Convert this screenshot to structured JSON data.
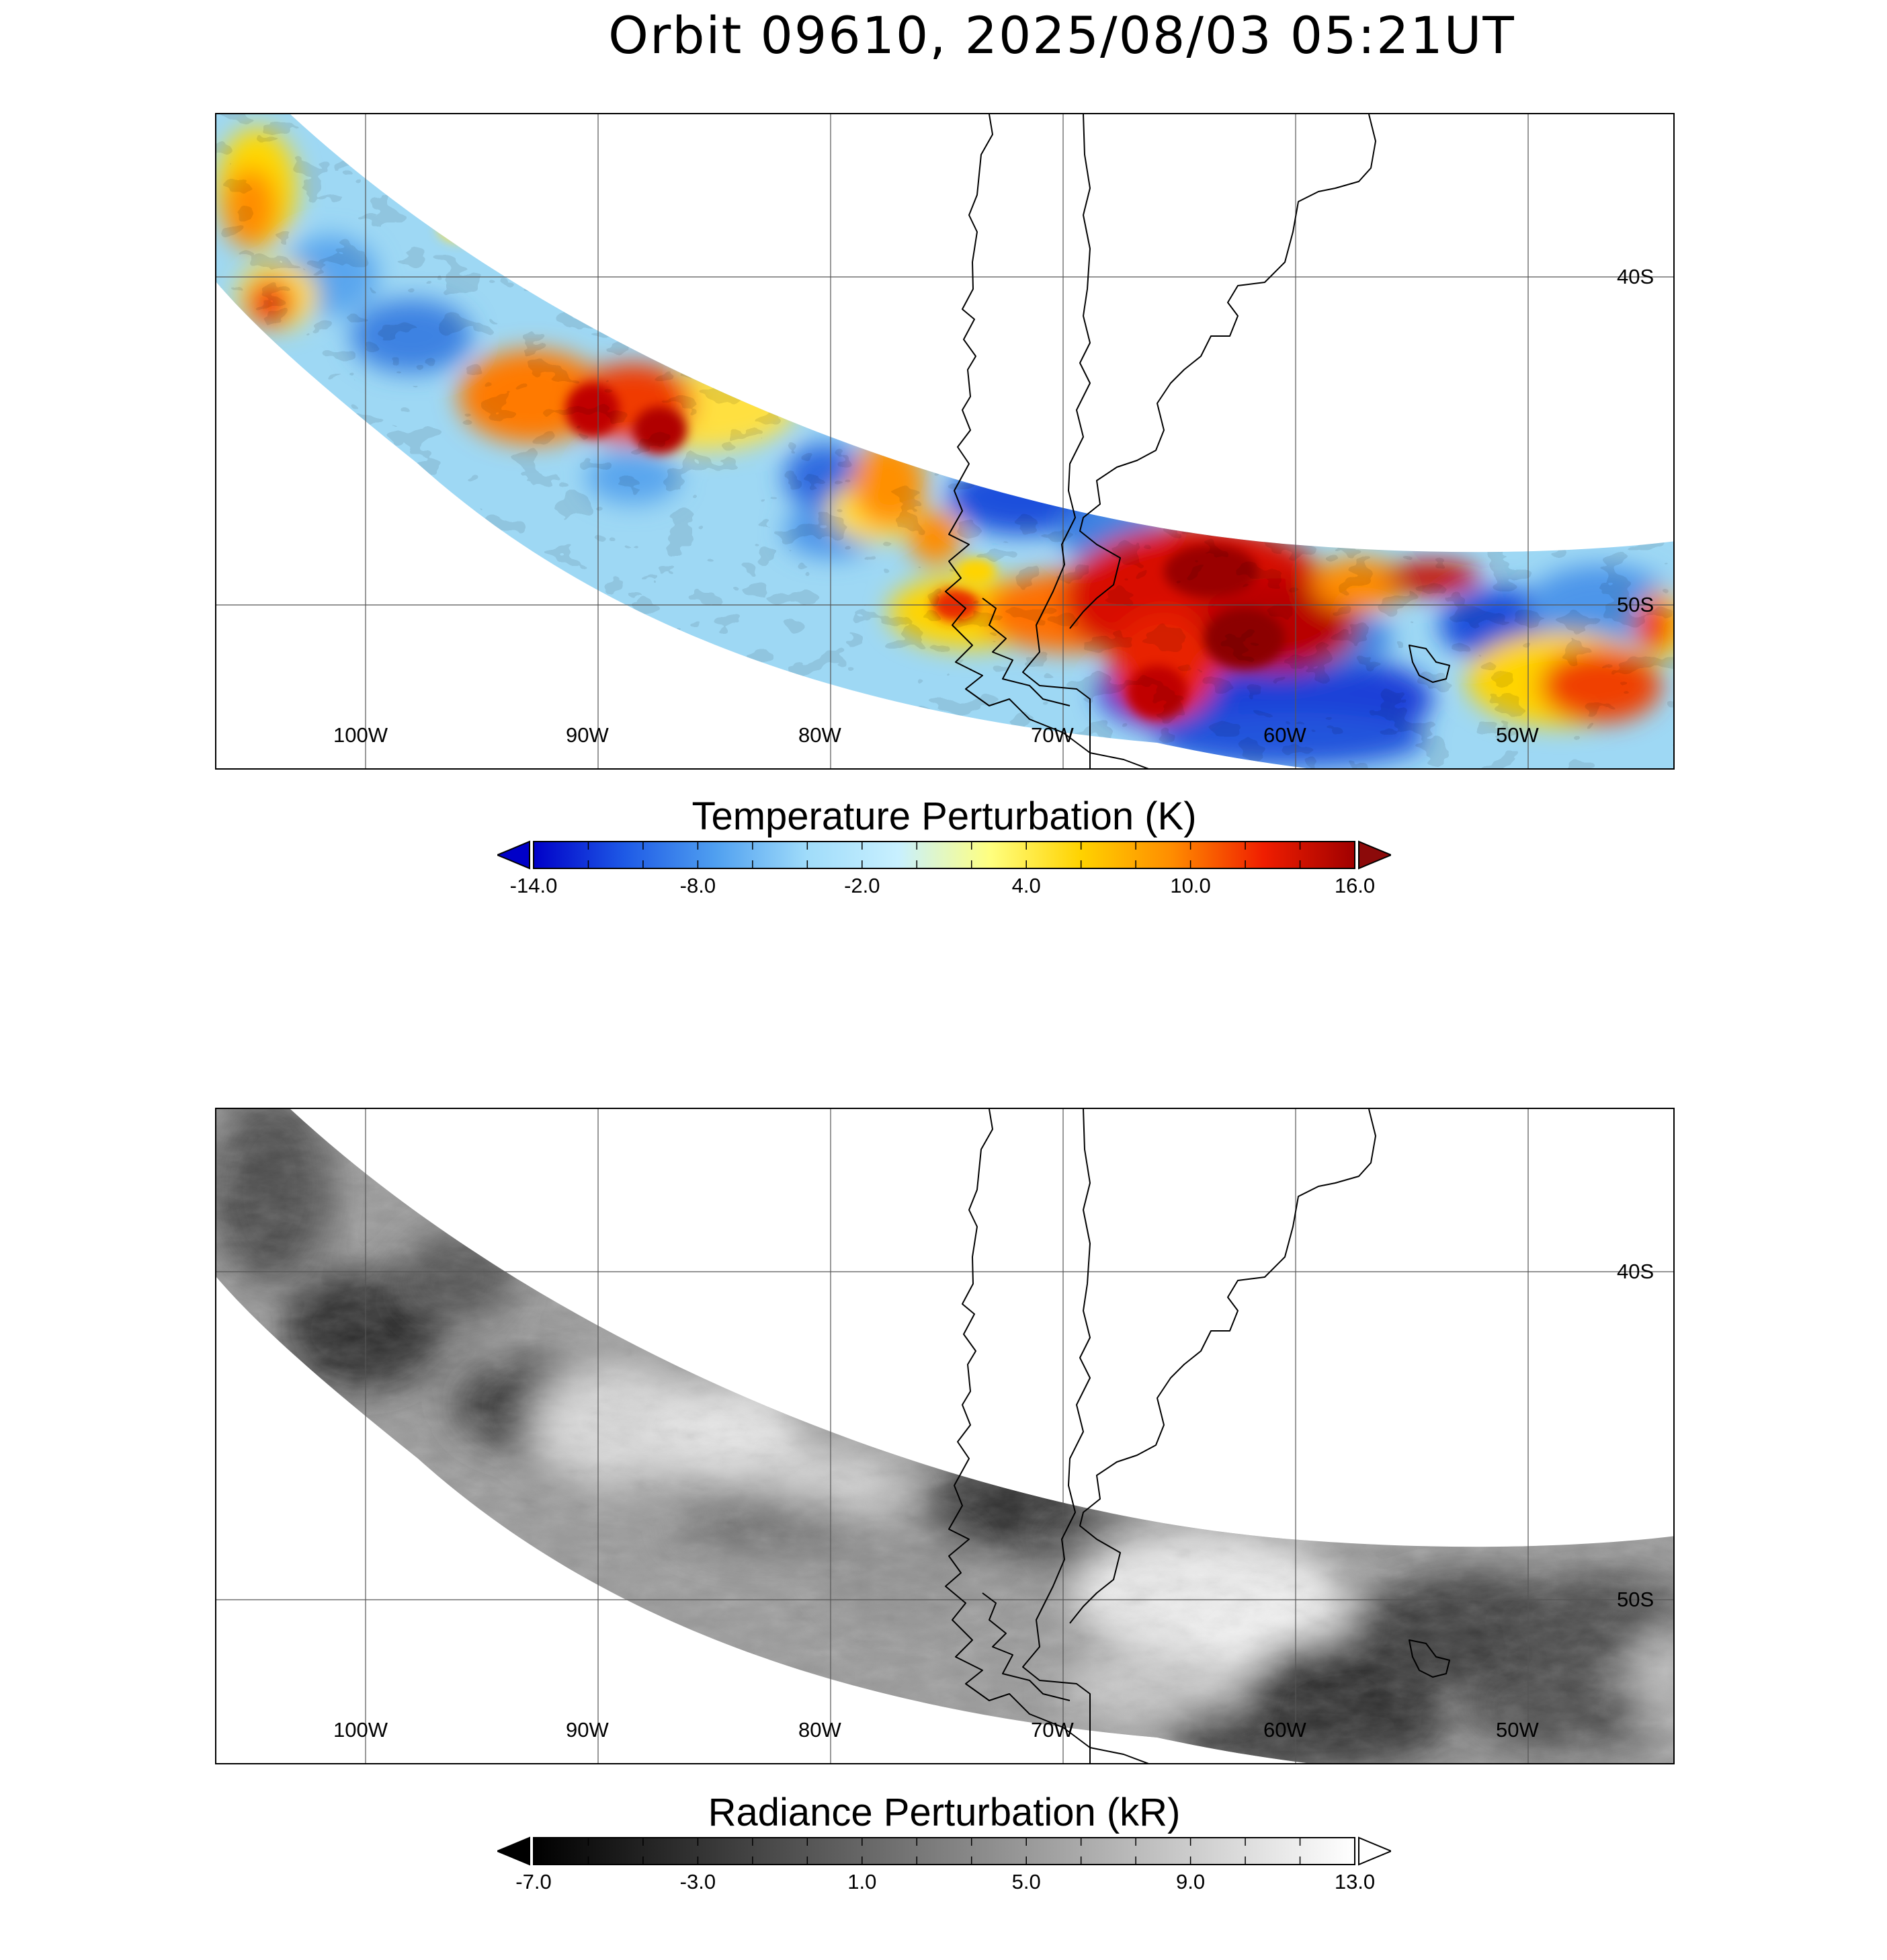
{
  "title": "Orbit 09610, 2025/08/03 05:21UT",
  "grid": {
    "lon_labels": [
      "100W",
      "90W",
      "80W",
      "70W",
      "60W",
      "50W"
    ],
    "lat_labels": [
      "40S",
      "50S"
    ]
  },
  "panels": [
    {
      "name": "temperature",
      "colorbar": {
        "title": "Temperature Perturbation (K)",
        "ticks": [
          "-14.0",
          "-8.0",
          "-2.0",
          "4.0",
          "10.0",
          "16.0"
        ],
        "range": [
          -14.0,
          16.0
        ],
        "colors": [
          "#0000c8",
          "#1e5ae6",
          "#50a0f0",
          "#a0dcfa",
          "#c8f0ff",
          "#ffff80",
          "#ffd200",
          "#ff8c00",
          "#f01e00",
          "#a00000"
        ],
        "under_color": "#0000c8",
        "over_color": "#8c0a0a"
      }
    },
    {
      "name": "radiance",
      "colorbar": {
        "title": "Radiance Perturbation (kR)",
        "ticks": [
          "-7.0",
          "-3.0",
          "1.0",
          "5.0",
          "9.0",
          "13.0"
        ],
        "range": [
          -7.0,
          13.0
        ],
        "colors": [
          "#000000",
          "#ffffff"
        ],
        "under_color": "#000000",
        "over_color": "#ffffff"
      }
    }
  ]
}
